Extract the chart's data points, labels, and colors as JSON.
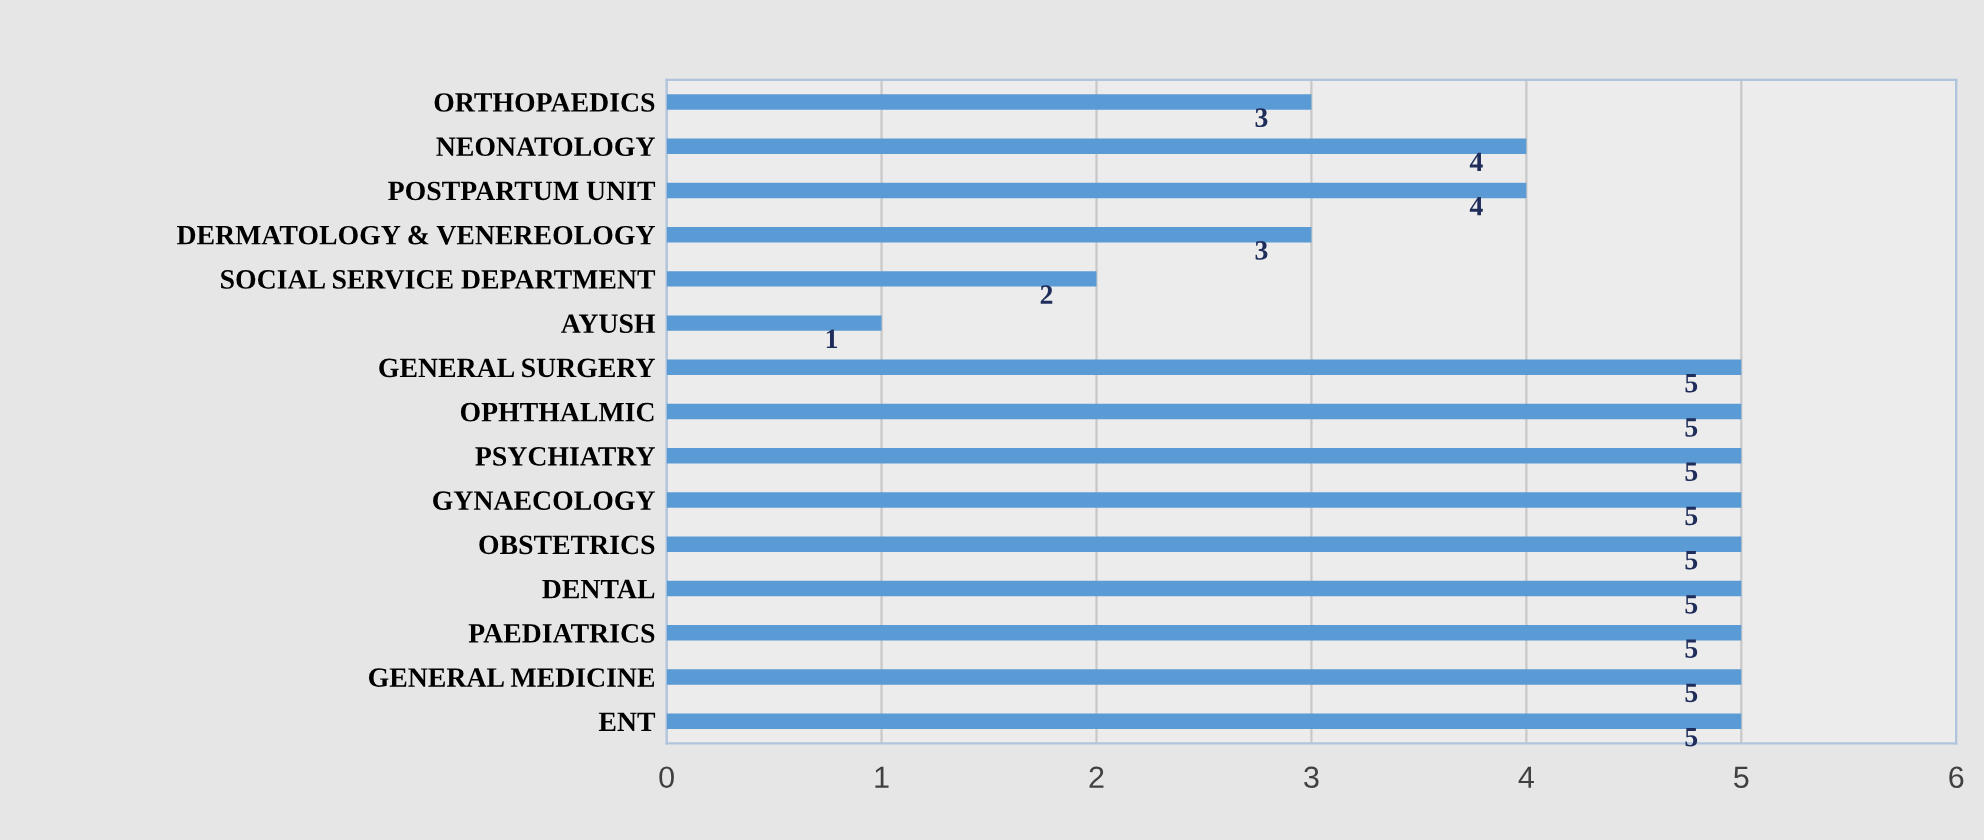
{
  "chart_data": {
    "type": "bar",
    "orientation": "horizontal",
    "categories": [
      "ORTHOPAEDICS",
      "NEONATOLOGY",
      "POSTPARTUM UNIT",
      "DERMATOLOGY & VENEREOLOGY",
      "SOCIAL SERVICE DEPARTMENT",
      "AYUSH",
      "GENERAL SURGERY",
      "OPHTHALMIC",
      "PSYCHIATRY",
      "GYNAECOLOGY",
      "OBSTETRICS",
      "DENTAL",
      "PAEDIATRICS",
      "GENERAL MEDICINE",
      "ENT"
    ],
    "values": [
      3,
      4,
      4,
      3,
      2,
      1,
      5,
      5,
      5,
      5,
      5,
      5,
      5,
      5,
      5
    ],
    "color": "#5b9bd5",
    "xlim": [
      0,
      6
    ],
    "xticks": [
      0,
      1,
      2,
      3,
      4,
      5,
      6
    ],
    "grid": "x",
    "data_labels": true,
    "legend": false
  }
}
